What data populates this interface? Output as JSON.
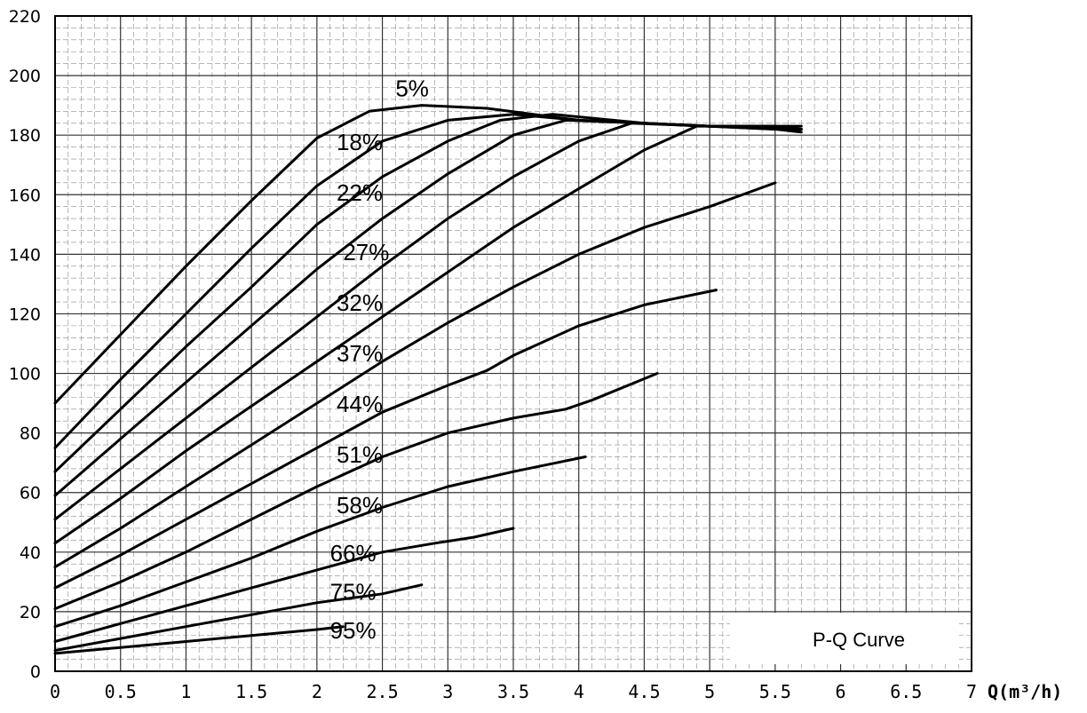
{
  "chart_data": {
    "type": "line",
    "title": "",
    "xlabel": "Q(m³/h)",
    "ylabel": "",
    "xlim": [
      0,
      7
    ],
    "ylim": [
      0,
      220
    ],
    "grid": true,
    "x_ticks": [
      "0",
      "0.5",
      "1",
      "1.5",
      "2",
      "2.5",
      "3",
      "3.5",
      "4",
      "4.5",
      "5",
      "5.5",
      "6",
      "6.5",
      "7"
    ],
    "y_ticks": [
      "0",
      "20",
      "40",
      "60",
      "80",
      "100",
      "120",
      "140",
      "160",
      "180",
      "200",
      "220"
    ],
    "legend_box": {
      "text": "P-Q Curve",
      "placement": "bottom-right"
    },
    "series": [
      {
        "name": "5%",
        "points": [
          [
            0,
            90
          ],
          [
            0.5,
            113
          ],
          [
            1,
            136
          ],
          [
            1.5,
            158
          ],
          [
            2,
            179
          ],
          [
            2.4,
            188
          ],
          [
            2.8,
            190
          ],
          [
            3.3,
            189
          ],
          [
            4,
            185
          ],
          [
            5,
            183
          ],
          [
            5.7,
            182
          ]
        ]
      },
      {
        "name": "18%",
        "points": [
          [
            0,
            75
          ],
          [
            0.5,
            98
          ],
          [
            1,
            120
          ],
          [
            1.5,
            142
          ],
          [
            2,
            163
          ],
          [
            2.5,
            178
          ],
          [
            3,
            185
          ],
          [
            3.5,
            187
          ],
          [
            4,
            185
          ],
          [
            5,
            183
          ],
          [
            5.7,
            183
          ]
        ]
      },
      {
        "name": "22%",
        "points": [
          [
            0,
            67
          ],
          [
            0.5,
            88
          ],
          [
            1,
            109
          ],
          [
            1.5,
            129
          ],
          [
            2,
            150
          ],
          [
            2.5,
            166
          ],
          [
            3,
            178
          ],
          [
            3.4,
            185
          ],
          [
            3.8,
            187
          ],
          [
            4.5,
            184
          ],
          [
            5.5,
            182
          ],
          [
            5.7,
            182
          ]
        ]
      },
      {
        "name": "27%",
        "points": [
          [
            0,
            59
          ],
          [
            0.5,
            78
          ],
          [
            1,
            97
          ],
          [
            1.5,
            116
          ],
          [
            2,
            135
          ],
          [
            2.5,
            152
          ],
          [
            3,
            167
          ],
          [
            3.5,
            180
          ],
          [
            3.9,
            185
          ],
          [
            4.5,
            184
          ],
          [
            5.5,
            182
          ],
          [
            5.7,
            181
          ]
        ]
      },
      {
        "name": "32%",
        "points": [
          [
            0,
            51
          ],
          [
            0.5,
            68
          ],
          [
            1,
            85
          ],
          [
            1.5,
            102
          ],
          [
            2,
            119
          ],
          [
            2.5,
            136
          ],
          [
            3,
            152
          ],
          [
            3.5,
            166
          ],
          [
            4,
            178
          ],
          [
            4.4,
            184
          ],
          [
            5,
            183
          ],
          [
            5.7,
            182
          ]
        ]
      },
      {
        "name": "37%",
        "points": [
          [
            0,
            43
          ],
          [
            0.5,
            58
          ],
          [
            1,
            74
          ],
          [
            1.5,
            89
          ],
          [
            2,
            104
          ],
          [
            2.5,
            119
          ],
          [
            3,
            134
          ],
          [
            3.5,
            149
          ],
          [
            4,
            162
          ],
          [
            4.5,
            175
          ],
          [
            4.9,
            183
          ],
          [
            5.5,
            183
          ],
          [
            5.7,
            182
          ]
        ]
      },
      {
        "name": "44%",
        "points": [
          [
            0,
            35
          ],
          [
            0.5,
            48
          ],
          [
            1,
            62
          ],
          [
            1.5,
            76
          ],
          [
            2,
            90
          ],
          [
            2.5,
            104
          ],
          [
            3,
            117
          ],
          [
            3.5,
            129
          ],
          [
            4,
            140
          ],
          [
            4.5,
            149
          ],
          [
            5,
            156
          ],
          [
            5.5,
            164
          ]
        ]
      },
      {
        "name": "51%",
        "points": [
          [
            0,
            28
          ],
          [
            0.5,
            39
          ],
          [
            1,
            51
          ],
          [
            1.5,
            63
          ],
          [
            2,
            75
          ],
          [
            2.5,
            87
          ],
          [
            3,
            96
          ],
          [
            3.3,
            101
          ],
          [
            3.5,
            106
          ],
          [
            4,
            116
          ],
          [
            4.5,
            123
          ],
          [
            5.05,
            128
          ]
        ]
      },
      {
        "name": "58%",
        "points": [
          [
            0,
            21
          ],
          [
            0.5,
            30
          ],
          [
            1,
            40
          ],
          [
            1.5,
            51
          ],
          [
            2,
            62
          ],
          [
            2.5,
            72
          ],
          [
            3,
            80
          ],
          [
            3.5,
            85
          ],
          [
            3.9,
            88
          ],
          [
            4.1,
            91
          ],
          [
            4.6,
            100
          ]
        ]
      },
      {
        "name": "66%",
        "points": [
          [
            0,
            15
          ],
          [
            0.5,
            22
          ],
          [
            1,
            30
          ],
          [
            1.5,
            38
          ],
          [
            2,
            47
          ],
          [
            2.5,
            55
          ],
          [
            3,
            62
          ],
          [
            3.5,
            67
          ],
          [
            4.05,
            72
          ]
        ]
      },
      {
        "name": "75%",
        "points": [
          [
            0,
            10
          ],
          [
            0.5,
            16
          ],
          [
            1,
            22
          ],
          [
            1.5,
            28
          ],
          [
            2,
            34
          ],
          [
            2.5,
            40
          ],
          [
            2.9,
            43
          ],
          [
            3.2,
            45
          ],
          [
            3.5,
            48
          ]
        ]
      },
      {
        "name": "95%",
        "points": [
          [
            0,
            7
          ],
          [
            0.5,
            11
          ],
          [
            1,
            15
          ],
          [
            1.5,
            19
          ],
          [
            2,
            23
          ],
          [
            2.5,
            26
          ],
          [
            2.8,
            29
          ]
        ]
      },
      {
        "name": "",
        "points": [
          [
            0,
            6
          ],
          [
            0.5,
            8
          ],
          [
            1,
            10
          ],
          [
            1.5,
            12
          ],
          [
            2,
            14
          ],
          [
            2.2,
            15
          ]
        ]
      }
    ],
    "curve_labels": [
      {
        "text": "5%",
        "x": 2.6,
        "y": 193
      },
      {
        "text": "18%",
        "x": 2.15,
        "y": 175
      },
      {
        "text": "22%",
        "x": 2.15,
        "y": 158
      },
      {
        "text": "27%",
        "x": 2.2,
        "y": 138
      },
      {
        "text": "32%",
        "x": 2.15,
        "y": 121
      },
      {
        "text": "37%",
        "x": 2.15,
        "y": 104
      },
      {
        "text": "44%",
        "x": 2.15,
        "y": 87
      },
      {
        "text": "51%",
        "x": 2.15,
        "y": 70
      },
      {
        "text": "58%",
        "x": 2.15,
        "y": 53
      },
      {
        "text": "66%",
        "x": 2.1,
        "y": 37
      },
      {
        "text": "75%",
        "x": 2.1,
        "y": 24
      },
      {
        "text": "95%",
        "x": 2.1,
        "y": 11
      }
    ]
  }
}
